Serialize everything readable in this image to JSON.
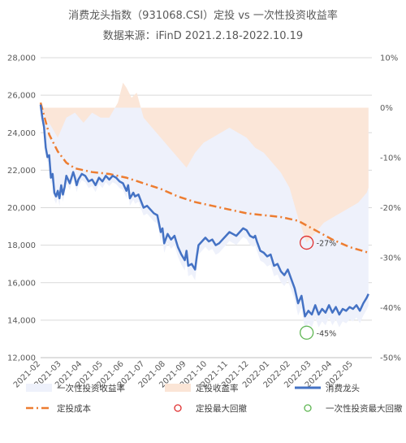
{
  "chart_data": {
    "type": "line",
    "title": "消费龙头指数（931068.CSI）定投 vs 一次性投资收益率",
    "subtitle": "数据来源：iFinD 2021.2.18-2022.10.19",
    "x_ticks": [
      "2021-02",
      "2021-03",
      "2021-04",
      "2021-05",
      "2021-06",
      "2021-07",
      "2021-08",
      "2021-09",
      "2021-10",
      "2021-11",
      "2021-12",
      "2022-01",
      "2022-02",
      "2022-03",
      "2022-04",
      "2022-05"
    ],
    "y_left": {
      "lim": [
        12000,
        28000
      ],
      "ticks": [
        "12,000",
        "14,000",
        "16,000",
        "18,000",
        "20,000",
        "22,000",
        "24,000",
        "26,000",
        "28,000"
      ]
    },
    "y_right": {
      "lim": [
        -50,
        10
      ],
      "ticks": [
        "10%",
        "0%",
        "-10%",
        "-20%",
        "-30%",
        "-40%",
        "-50%"
      ]
    },
    "colors": {
      "index": "#4472c4",
      "cost": "#ed7d31",
      "dca_area": "#fbe5d6",
      "lump_area": "#eef1fb",
      "grid": "#d9d9d9",
      "text": "#595959"
    },
    "series": [
      {
        "name": "消费龙头",
        "axis": "left",
        "style": "line",
        "points": [
          [
            0,
            25500
          ],
          [
            0.1,
            24800
          ],
          [
            0.2,
            24300
          ],
          [
            0.3,
            23200
          ],
          [
            0.4,
            22700
          ],
          [
            0.5,
            22800
          ],
          [
            0.6,
            21600
          ],
          [
            0.7,
            21800
          ],
          [
            0.8,
            20800
          ],
          [
            0.9,
            20600
          ],
          [
            1.0,
            20900
          ],
          [
            1.1,
            20500
          ],
          [
            1.2,
            21200
          ],
          [
            1.3,
            20700
          ],
          [
            1.4,
            21100
          ],
          [
            1.5,
            21700
          ],
          [
            1.6,
            21500
          ],
          [
            1.7,
            21300
          ],
          [
            1.8,
            21600
          ],
          [
            1.9,
            21900
          ],
          [
            2.0,
            21600
          ],
          [
            2.1,
            21200
          ],
          [
            2.2,
            21500
          ],
          [
            2.4,
            21800
          ],
          [
            2.6,
            21700
          ],
          [
            2.8,
            21400
          ],
          [
            3.0,
            21500
          ],
          [
            3.2,
            21200
          ],
          [
            3.4,
            21600
          ],
          [
            3.6,
            21400
          ],
          [
            3.8,
            21700
          ],
          [
            4.0,
            21500
          ],
          [
            4.2,
            21700
          ],
          [
            4.4,
            21600
          ],
          [
            4.6,
            21400
          ],
          [
            4.8,
            21300
          ],
          [
            5.0,
            20900
          ],
          [
            5.1,
            21200
          ],
          [
            5.2,
            20500
          ],
          [
            5.4,
            20800
          ],
          [
            5.5,
            20600
          ],
          [
            5.7,
            20700
          ],
          [
            6.0,
            20000
          ],
          [
            6.2,
            20100
          ],
          [
            6.4,
            19900
          ],
          [
            6.6,
            19700
          ],
          [
            6.8,
            19600
          ],
          [
            7.0,
            18700
          ],
          [
            7.1,
            18900
          ],
          [
            7.2,
            18100
          ],
          [
            7.4,
            18600
          ],
          [
            7.6,
            18300
          ],
          [
            7.8,
            18500
          ],
          [
            8.0,
            17900
          ],
          [
            8.2,
            17500
          ],
          [
            8.4,
            17200
          ],
          [
            8.5,
            17700
          ],
          [
            8.6,
            16900
          ],
          [
            8.8,
            17000
          ],
          [
            9.0,
            16700
          ],
          [
            9.1,
            17400
          ],
          [
            9.2,
            18000
          ],
          [
            9.4,
            18200
          ],
          [
            9.6,
            18400
          ],
          [
            9.8,
            18200
          ],
          [
            10.0,
            18300
          ],
          [
            10.2,
            18000
          ],
          [
            10.4,
            18100
          ],
          [
            10.6,
            18300
          ],
          [
            10.8,
            18500
          ],
          [
            11.0,
            18700
          ],
          [
            11.2,
            18600
          ],
          [
            11.4,
            18500
          ],
          [
            11.6,
            18700
          ],
          [
            11.8,
            18900
          ],
          [
            12.0,
            18800
          ],
          [
            12.2,
            18500
          ],
          [
            12.4,
            18400
          ],
          [
            12.5,
            18500
          ],
          [
            12.6,
            18200
          ],
          [
            12.8,
            17700
          ],
          [
            13.0,
            17600
          ],
          [
            13.2,
            17400
          ],
          [
            13.4,
            17500
          ],
          [
            13.6,
            16900
          ],
          [
            13.8,
            17000
          ],
          [
            14.0,
            16600
          ],
          [
            14.2,
            16400
          ],
          [
            14.4,
            16700
          ],
          [
            14.6,
            16200
          ],
          [
            14.8,
            15700
          ],
          [
            15.0,
            14900
          ],
          [
            15.2,
            15300
          ],
          [
            15.4,
            14200
          ],
          [
            15.6,
            14500
          ],
          [
            15.8,
            14300
          ],
          [
            16.0,
            14800
          ],
          [
            16.2,
            14300
          ],
          [
            16.4,
            14600
          ],
          [
            16.6,
            14400
          ],
          [
            16.8,
            14800
          ],
          [
            17.0,
            14400
          ],
          [
            17.2,
            14700
          ],
          [
            17.4,
            14300
          ],
          [
            17.6,
            14600
          ],
          [
            17.8,
            14500
          ],
          [
            18.0,
            14700
          ],
          [
            18.2,
            14600
          ],
          [
            18.4,
            14800
          ],
          [
            18.6,
            14500
          ],
          [
            18.8,
            14900
          ],
          [
            19.0,
            15200
          ],
          [
            19.1,
            15400
          ]
        ]
      },
      {
        "name": "定投成本",
        "axis": "left",
        "style": "dashdot",
        "points": [
          [
            0,
            25600
          ],
          [
            0.5,
            23900
          ],
          [
            1.0,
            23000
          ],
          [
            1.5,
            22400
          ],
          [
            2.0,
            22100
          ],
          [
            3.0,
            21900
          ],
          [
            4.0,
            21800
          ],
          [
            5.0,
            21600
          ],
          [
            6.0,
            21300
          ],
          [
            7.0,
            21000
          ],
          [
            8.0,
            20600
          ],
          [
            9.0,
            20300
          ],
          [
            10.0,
            20100
          ],
          [
            11.0,
            19900
          ],
          [
            12.0,
            19700
          ],
          [
            13.0,
            19600
          ],
          [
            14.0,
            19500
          ],
          [
            15.0,
            19300
          ],
          [
            16.0,
            18800
          ],
          [
            17.0,
            18300
          ],
          [
            18.0,
            17900
          ],
          [
            19.1,
            17600
          ]
        ]
      },
      {
        "name": "一次性投资收益率",
        "axis": "right",
        "style": "area",
        "derived_from": "消费龙头"
      },
      {
        "name": "定投收益率",
        "axis": "right",
        "style": "area",
        "points": [
          [
            0,
            0
          ],
          [
            0.5,
            -3
          ],
          [
            1.0,
            -6
          ],
          [
            1.5,
            -2
          ],
          [
            2.0,
            -1
          ],
          [
            2.5,
            -3
          ],
          [
            3.0,
            -1
          ],
          [
            3.5,
            -2
          ],
          [
            4.0,
            -2
          ],
          [
            4.5,
            1
          ],
          [
            4.8,
            5
          ],
          [
            5.0,
            4
          ],
          [
            5.3,
            2
          ],
          [
            5.6,
            3
          ],
          [
            6.0,
            -2
          ],
          [
            6.5,
            -4
          ],
          [
            7.0,
            -6
          ],
          [
            7.5,
            -8
          ],
          [
            8.0,
            -10
          ],
          [
            8.5,
            -12
          ],
          [
            9.0,
            -9
          ],
          [
            9.5,
            -7
          ],
          [
            10.0,
            -6
          ],
          [
            10.5,
            -5
          ],
          [
            11.0,
            -4
          ],
          [
            11.5,
            -5
          ],
          [
            12.0,
            -6
          ],
          [
            12.5,
            -8
          ],
          [
            13.0,
            -9
          ],
          [
            13.5,
            -11
          ],
          [
            14.0,
            -13
          ],
          [
            14.5,
            -16
          ],
          [
            15.0,
            -22
          ],
          [
            15.5,
            -27
          ],
          [
            16.0,
            -25
          ],
          [
            16.5,
            -23
          ],
          [
            17.0,
            -22
          ],
          [
            17.5,
            -21
          ],
          [
            18.0,
            -20
          ],
          [
            18.5,
            -19
          ],
          [
            19.0,
            -17
          ],
          [
            19.1,
            -16
          ]
        ]
      }
    ],
    "annotations": [
      {
        "label": "-27%",
        "x": 15.5,
        "y": -27,
        "axis": "right",
        "color": "#e03030",
        "name": "定投最大回撤"
      },
      {
        "label": "-45%",
        "x": 15.5,
        "y": -45,
        "axis": "right",
        "color": "#5fb653",
        "name": "一次性投资最大回撤"
      }
    ],
    "legend": {
      "placement": "bottom",
      "items": [
        {
          "label": "一次性投资收益率",
          "kind": "area",
          "color": "#eef1fb"
        },
        {
          "label": "定投收益率",
          "kind": "area",
          "color": "#fbe5d6"
        },
        {
          "label": "消费龙头",
          "kind": "line",
          "color": "#4472c4"
        },
        {
          "label": "定投成本",
          "kind": "dashdot",
          "color": "#ed7d31"
        },
        {
          "label": "定投最大回撤",
          "kind": "circle",
          "color": "#e03030"
        },
        {
          "label": "一次性投资最大回撤",
          "kind": "circle",
          "color": "#5fb653"
        }
      ]
    },
    "grid": true
  }
}
